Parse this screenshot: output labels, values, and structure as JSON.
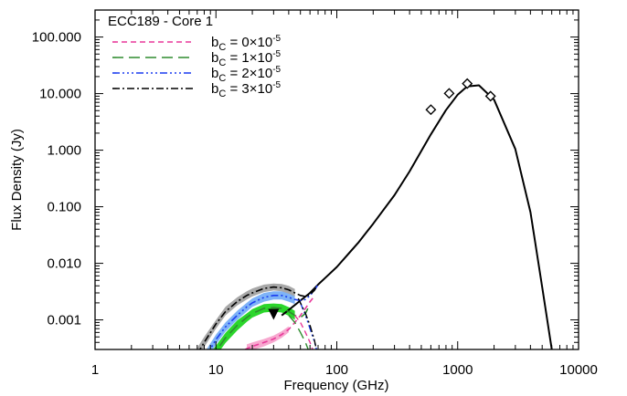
{
  "chart_data": {
    "type": "line",
    "title": "ECC189 - Core 1",
    "xlabel": "Frequency (GHz)",
    "ylabel": "Flux Density (Jy)",
    "xscale": "log",
    "yscale": "log",
    "xlim": [
      1,
      10000
    ],
    "ylim": [
      0.0003,
      300
    ],
    "x_ticks": [
      {
        "value": 1,
        "label": "1"
      },
      {
        "value": 10,
        "label": "10"
      },
      {
        "value": 100,
        "label": "100"
      },
      {
        "value": 1000,
        "label": "1000"
      },
      {
        "value": 10000,
        "label": "10000"
      }
    ],
    "y_ticks": [
      {
        "value": 0.001,
        "label": "0.001"
      },
      {
        "value": 0.01,
        "label": "0.010"
      },
      {
        "value": 0.1,
        "label": "0.100"
      },
      {
        "value": 1,
        "label": "1.000"
      },
      {
        "value": 10,
        "label": "10.000"
      },
      {
        "value": 100,
        "label": "100.000"
      }
    ],
    "grid": false,
    "legend_position": "top-left",
    "legend": [
      {
        "prefix": "b",
        "sub": "C",
        "text": " = 0×10",
        "sup": "-5",
        "color": "#e8399a",
        "dash": "6,4"
      },
      {
        "prefix": "b",
        "sub": "C",
        "text": " = 1×10",
        "sup": "-5",
        "color": "#2e8b2e",
        "dash": "12,6"
      },
      {
        "prefix": "b",
        "sub": "C",
        "text": " = 2×10",
        "sup": "-5",
        "color": "#1a3cf0",
        "dash": "8,3,2,3,2,3,2,3"
      },
      {
        "prefix": "b",
        "sub": "C",
        "text": " = 3×10",
        "sup": "-5",
        "color": "#000000",
        "dash": "8,3,2,3"
      }
    ],
    "dust_component": {
      "color": "#000000",
      "x": [
        35,
        40,
        50,
        60,
        70,
        80,
        100,
        150,
        200,
        300,
        400,
        600,
        800,
        1000,
        1200,
        1500,
        2000,
        3000,
        4000,
        5000,
        6000
      ],
      "y": [
        0.0012,
        0.0015,
        0.0022,
        0.003,
        0.0042,
        0.0055,
        0.0086,
        0.023,
        0.05,
        0.16,
        0.42,
        1.9,
        5.1,
        9.6,
        13.4,
        14.0,
        7.8,
        1.05,
        0.08,
        0.0038,
        0.0003
      ]
    },
    "photometry_points": {
      "marker": "diamond",
      "x": [
        600,
        850,
        1200,
        1870
      ],
      "y": [
        5.2,
        10.1,
        15.0,
        9.0
      ]
    },
    "upper_limit": {
      "marker": "triangle-down",
      "x": 30,
      "y": 0.0013,
      "color": "#000000"
    },
    "series": [
      {
        "color": "#e8399a",
        "x": [
          15,
          18,
          20,
          25,
          30,
          35,
          40,
          45,
          50,
          55,
          60,
          65
        ],
        "y": [
          0.00025,
          0.00031,
          0.00034,
          0.0004,
          0.00046,
          0.00055,
          0.00068,
          0.0009,
          0.0012,
          0.0016,
          0.0021,
          0.0026
        ],
        "band": {
          "color": "#f7a8cf",
          "x": [
            18,
            20,
            25,
            30,
            35,
            40
          ],
          "lower": [
            0.00026,
            0.00029,
            0.00034,
            0.0004,
            0.00048,
            0.0006
          ],
          "upper": [
            0.00037,
            0.0004,
            0.00046,
            0.00053,
            0.00063,
            0.00077
          ]
        }
      },
      {
        "color": "#2e8b2e",
        "x": [
          9,
          10,
          12,
          15,
          18,
          20,
          25,
          30,
          35,
          40,
          45,
          50,
          55,
          60
        ],
        "y": [
          0.0002,
          0.00028,
          0.00048,
          0.0008,
          0.0011,
          0.0013,
          0.0016,
          0.00165,
          0.0016,
          0.0014,
          0.0012,
          0.0011,
          0.0013,
          0.0019
        ],
        "band": {
          "color": "#2bd62b",
          "x": [
            9,
            10,
            12,
            15,
            18,
            20,
            25,
            30,
            35,
            40,
            45
          ],
          "lower": [
            0.00016,
            0.00023,
            0.00039,
            0.00065,
            0.00092,
            0.0011,
            0.00135,
            0.0014,
            0.00135,
            0.00118,
            0.001
          ],
          "upper": [
            0.00026,
            0.00035,
            0.00059,
            0.00098,
            0.0013,
            0.00155,
            0.0019,
            0.00195,
            0.0019,
            0.00168,
            0.00145
          ]
        }
      },
      {
        "color": "#1a3cf0",
        "x": [
          8,
          10,
          12,
          15,
          18,
          20,
          25,
          30,
          35,
          40,
          45,
          50,
          55,
          60,
          65,
          70
        ],
        "y": [
          0.0002,
          0.00045,
          0.00075,
          0.0012,
          0.0017,
          0.002,
          0.0025,
          0.0027,
          0.0027,
          0.0025,
          0.0023,
          0.0022,
          0.0023,
          0.0027,
          0.0033,
          0.0042
        ],
        "band": {
          "color": "#7eb3f7",
          "x": [
            8,
            10,
            12,
            15,
            18,
            20,
            25,
            30,
            35,
            40,
            45
          ],
          "lower": [
            0.00016,
            0.00037,
            0.00062,
            0.001,
            0.0014,
            0.0017,
            0.0021,
            0.0023,
            0.0023,
            0.0021,
            0.0019
          ],
          "upper": [
            0.00026,
            0.00055,
            0.0009,
            0.00145,
            0.002,
            0.0024,
            0.003,
            0.0032,
            0.0032,
            0.003,
            0.0028
          ]
        }
      },
      {
        "color": "#000000",
        "x": [
          7,
          8,
          10,
          12,
          15,
          18,
          20,
          25,
          30,
          35,
          40,
          45,
          50,
          55,
          60,
          65,
          70
        ],
        "y": [
          0.00025,
          0.0004,
          0.00085,
          0.0014,
          0.0021,
          0.0027,
          0.003,
          0.0036,
          0.0038,
          0.0037,
          0.0034,
          0.003,
          0.0027,
          0.0026,
          0.0028,
          0.0033,
          0.0042
        ],
        "band": {
          "color": "#a8a8a8",
          "x": [
            7,
            8,
            10,
            12,
            15,
            18,
            20,
            25,
            30,
            35,
            40,
            45
          ],
          "lower": [
            0.00019,
            0.00033,
            0.0007,
            0.0012,
            0.0018,
            0.0023,
            0.0026,
            0.0031,
            0.0033,
            0.0032,
            0.0029,
            0.0026
          ],
          "upper": [
            0.00032,
            0.0005,
            0.001,
            0.0017,
            0.0025,
            0.0032,
            0.0036,
            0.0042,
            0.0044,
            0.0043,
            0.004,
            0.0035
          ]
        }
      }
    ],
    "component_drops": [
      {
        "color": "#e8399a",
        "x": [
          45,
          50,
          55,
          60,
          63
        ],
        "y": [
          0.0012,
          0.0009,
          0.0006,
          0.0004,
          0.0003
        ]
      },
      {
        "color": "#2e8b2e",
        "x": [
          40,
          45,
          50,
          55,
          58
        ],
        "y": [
          0.0012,
          0.0009,
          0.0006,
          0.0004,
          0.0003
        ]
      },
      {
        "color": "#1a3cf0",
        "x": [
          50,
          55,
          60,
          65,
          68
        ],
        "y": [
          0.002,
          0.0012,
          0.0007,
          0.00042,
          0.0003
        ]
      },
      {
        "color": "#000000",
        "x": [
          48,
          55,
          60,
          65,
          68
        ],
        "y": [
          0.0024,
          0.0013,
          0.0008,
          0.00045,
          0.0003
        ]
      }
    ]
  }
}
